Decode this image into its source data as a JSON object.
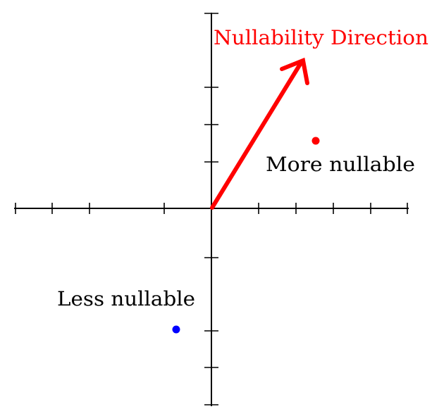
{
  "direction_label": "Nullability Direction",
  "more_label": "More nullable",
  "less_label": "Less nullable",
  "colors": {
    "axes": "#000000",
    "direction": "#ff0000",
    "more_point": "#ff0000",
    "less_point": "#0000ff",
    "text": "#000000"
  }
}
